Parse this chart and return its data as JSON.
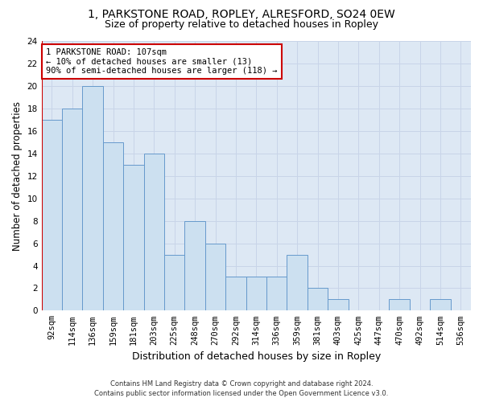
{
  "title1": "1, PARKSTONE ROAD, ROPLEY, ALRESFORD, SO24 0EW",
  "title2": "Size of property relative to detached houses in Ropley",
  "xlabel": "Distribution of detached houses by size in Ropley",
  "ylabel": "Number of detached properties",
  "categories": [
    "92sqm",
    "114sqm",
    "136sqm",
    "159sqm",
    "181sqm",
    "203sqm",
    "225sqm",
    "248sqm",
    "270sqm",
    "292sqm",
    "314sqm",
    "336sqm",
    "359sqm",
    "381sqm",
    "403sqm",
    "425sqm",
    "447sqm",
    "470sqm",
    "492sqm",
    "514sqm",
    "536sqm"
  ],
  "values": [
    17,
    18,
    20,
    15,
    13,
    14,
    5,
    8,
    6,
    3,
    3,
    3,
    5,
    2,
    1,
    0,
    0,
    1,
    0,
    1,
    0
  ],
  "bar_color": "#cce0f0",
  "bar_edge_color": "#6699cc",
  "annotation_box_text": "1 PARKSTONE ROAD: 107sqm\n← 10% of detached houses are smaller (13)\n90% of semi-detached houses are larger (118) →",
  "annotation_box_color": "#ffffff",
  "annotation_box_edge_color": "#cc0000",
  "ylim": [
    0,
    24
  ],
  "yticks": [
    0,
    2,
    4,
    6,
    8,
    10,
    12,
    14,
    16,
    18,
    20,
    22,
    24
  ],
  "footer1": "Contains HM Land Registry data © Crown copyright and database right 2024.",
  "footer2": "Contains public sector information licensed under the Open Government Licence v3.0.",
  "grid_color": "#c8d4e8",
  "bg_color": "#dde8f4",
  "bar_width": 1.0,
  "red_line_color": "#cc0000",
  "title_fontsize": 10,
  "subtitle_fontsize": 9,
  "tick_fontsize": 7.5,
  "ylabel_fontsize": 8.5,
  "xlabel_fontsize": 9,
  "annotation_fontsize": 7.5,
  "footer_fontsize": 6.0
}
